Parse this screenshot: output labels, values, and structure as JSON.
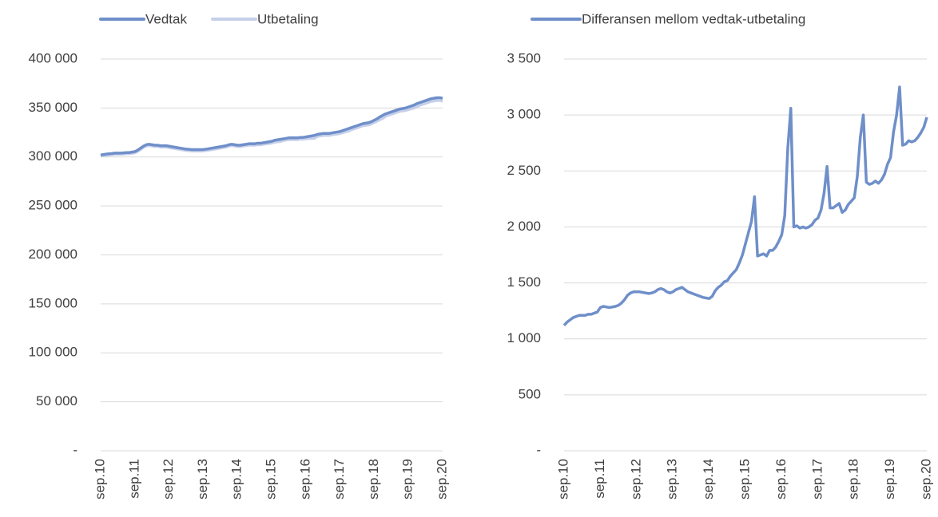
{
  "chart_data": [
    {
      "type": "line",
      "categories": [
        "sep.10",
        null,
        null,
        null,
        null,
        null,
        null,
        null,
        null,
        null,
        null,
        null,
        "sep.11",
        null,
        null,
        null,
        null,
        null,
        null,
        null,
        null,
        null,
        null,
        null,
        "sep.12",
        null,
        null,
        null,
        null,
        null,
        null,
        null,
        null,
        null,
        null,
        null,
        "sep.13",
        null,
        null,
        null,
        null,
        null,
        null,
        null,
        null,
        null,
        null,
        null,
        "sep.14",
        null,
        null,
        null,
        null,
        null,
        null,
        null,
        null,
        null,
        null,
        null,
        "sep.15",
        null,
        null,
        null,
        null,
        null,
        null,
        null,
        null,
        null,
        null,
        null,
        "sep.16",
        null,
        null,
        null,
        null,
        null,
        null,
        null,
        null,
        null,
        null,
        null,
        "sep.17",
        null,
        null,
        null,
        null,
        null,
        null,
        null,
        null,
        null,
        null,
        null,
        "sep.18",
        null,
        null,
        null,
        null,
        null,
        null,
        null,
        null,
        null,
        null,
        null,
        "sep.19",
        null,
        null,
        null,
        null,
        null,
        null,
        null,
        null,
        null,
        null,
        null,
        "sep.20"
      ],
      "series": [
        {
          "name": "Vedtak",
          "color": "#6f8fc9",
          "values": [
            302000,
            302500,
            303000,
            303300,
            303600,
            304000,
            304000,
            304000,
            304200,
            304500,
            304500,
            305000,
            305500,
            307000,
            309000,
            311000,
            312500,
            313000,
            312500,
            312000,
            312000,
            311500,
            311500,
            311500,
            311000,
            310500,
            310000,
            309500,
            309000,
            308500,
            308000,
            307800,
            307500,
            307500,
            307500,
            307500,
            307600,
            308000,
            308500,
            309000,
            309500,
            310000,
            310500,
            311000,
            311500,
            312500,
            313000,
            312500,
            312000,
            312000,
            312500,
            313000,
            313500,
            313500,
            313500,
            314000,
            314000,
            314500,
            315000,
            315500,
            316000,
            317000,
            317500,
            318000,
            318500,
            319000,
            319500,
            319500,
            319500,
            319500,
            320000,
            320000,
            320500,
            321000,
            321500,
            322000,
            323000,
            323500,
            324000,
            324000,
            324000,
            324500,
            325000,
            325500,
            326000,
            327000,
            328000,
            329000,
            330000,
            331000,
            332000,
            333000,
            334000,
            334500,
            335000,
            336000,
            337500,
            339000,
            341000,
            342500,
            344000,
            345000,
            346000,
            347000,
            348000,
            349000,
            349500,
            350000,
            351000,
            352000,
            353000,
            354500,
            355500,
            356500,
            357500,
            358500,
            359500,
            360000,
            360500,
            360500,
            360000
          ]
        },
        {
          "name": "Utbetaling",
          "color": "#c6d0ea",
          "values": [
            300880,
            301350,
            301830,
            302110,
            302400,
            302790,
            302790,
            302790,
            302980,
            303280,
            303270,
            303760,
            304220,
            305710,
            307715,
            309720,
            311215,
            311710,
            311200,
            310680,
            310650,
            310110,
            310090,
            310080,
            309580,
            309080,
            308585,
            308090,
            307595,
            307090,
            306580,
            306360,
            306050,
            306060,
            306080,
            306090,
            306180,
            306560,
            307050,
            307540,
            308060,
            308580,
            309090,
            309600,
            310110,
            311120,
            311630,
            311135,
            310640,
            310620,
            311070,
            311540,
            312020,
            311990,
            311980,
            312440,
            312410,
            312880,
            313320,
            313750,
            314150,
            315050,
            315450,
            315730,
            316760,
            317250,
            317740,
            317760,
            317710,
            317710,
            318180,
            318130,
            318570,
            318900,
            318800,
            318940,
            321000,
            321490,
            322010,
            322000,
            322010,
            322500,
            322980,
            323440,
            323920,
            324850,
            325700,
            326460,
            327830,
            328830,
            329810,
            330790,
            331870,
            332350,
            332800,
            333770,
            335240,
            336550,
            338200,
            339500,
            341600,
            342620,
            343610,
            344590,
            345610,
            346580,
            347030,
            347440,
            348380,
            349150,
            350000,
            351250,
            352770,
            353760,
            354730,
            355740,
            356730,
            357200,
            357660,
            357610,
            357020
          ]
        }
      ],
      "ylim": [
        0,
        400000
      ],
      "yticks": [
        {
          "value": 0,
          "label": "-"
        },
        {
          "value": 50000,
          "label": "50 000"
        },
        {
          "value": 100000,
          "label": "100 000"
        },
        {
          "value": 150000,
          "label": "150 000"
        },
        {
          "value": 200000,
          "label": "200 000"
        },
        {
          "value": 250000,
          "label": "250 000"
        },
        {
          "value": 300000,
          "label": "300 000"
        },
        {
          "value": 350000,
          "label": "350 000"
        },
        {
          "value": 400000,
          "label": "400 000"
        }
      ],
      "grid": true,
      "legend": "top"
    },
    {
      "type": "line",
      "categories": [
        "sep.10",
        null,
        null,
        null,
        null,
        null,
        null,
        null,
        null,
        null,
        null,
        null,
        "sep.11",
        null,
        null,
        null,
        null,
        null,
        null,
        null,
        null,
        null,
        null,
        null,
        "sep.12",
        null,
        null,
        null,
        null,
        null,
        null,
        null,
        null,
        null,
        null,
        null,
        "sep.13",
        null,
        null,
        null,
        null,
        null,
        null,
        null,
        null,
        null,
        null,
        null,
        "sep.14",
        null,
        null,
        null,
        null,
        null,
        null,
        null,
        null,
        null,
        null,
        null,
        "sep.15",
        null,
        null,
        null,
        null,
        null,
        null,
        null,
        null,
        null,
        null,
        null,
        "sep.16",
        null,
        null,
        null,
        null,
        null,
        null,
        null,
        null,
        null,
        null,
        null,
        "sep.17",
        null,
        null,
        null,
        null,
        null,
        null,
        null,
        null,
        null,
        null,
        null,
        "sep.18",
        null,
        null,
        null,
        null,
        null,
        null,
        null,
        null,
        null,
        null,
        null,
        "sep.19",
        null,
        null,
        null,
        null,
        null,
        null,
        null,
        null,
        null,
        null,
        null,
        "sep.20"
      ],
      "series": [
        {
          "name": "Differansen mellom vedtak-utbetaling",
          "color": "#6f8fc9",
          "values": [
            1120,
            1150,
            1170,
            1190,
            1200,
            1210,
            1210,
            1210,
            1220,
            1220,
            1230,
            1240,
            1280,
            1290,
            1285,
            1280,
            1285,
            1290,
            1300,
            1320,
            1350,
            1390,
            1410,
            1420,
            1420,
            1420,
            1415,
            1410,
            1405,
            1410,
            1420,
            1440,
            1450,
            1440,
            1420,
            1410,
            1420,
            1440,
            1450,
            1460,
            1440,
            1420,
            1410,
            1400,
            1390,
            1380,
            1370,
            1365,
            1360,
            1380,
            1430,
            1460,
            1480,
            1510,
            1520,
            1560,
            1590,
            1620,
            1680,
            1750,
            1850,
            1950,
            2050,
            2270,
            1740,
            1750,
            1760,
            1740,
            1790,
            1790,
            1820,
            1870,
            1930,
            2100,
            2700,
            3060,
            2000,
            2010,
            1990,
            2000,
            1990,
            2000,
            2020,
            2060,
            2080,
            2150,
            2300,
            2540,
            2170,
            2170,
            2190,
            2210,
            2130,
            2150,
            2200,
            2230,
            2260,
            2450,
            2800,
            3000,
            2400,
            2380,
            2390,
            2410,
            2390,
            2420,
            2470,
            2560,
            2620,
            2850,
            3000,
            3250,
            2730,
            2740,
            2770,
            2760,
            2770,
            2800,
            2840,
            2890,
            2980
          ]
        }
      ],
      "ylim": [
        0,
        3500
      ],
      "yticks": [
        {
          "value": 0,
          "label": "-"
        },
        500,
        {
          "value": 1000,
          "label": "1 000"
        },
        {
          "value": 1500,
          "label": "1 500"
        },
        {
          "value": 2000,
          "label": "2 000"
        },
        {
          "value": 2500,
          "label": "2 500"
        },
        {
          "value": 3000,
          "label": "3 000"
        },
        {
          "value": 3500,
          "label": "3 500"
        }
      ],
      "grid": true,
      "legend": "top"
    }
  ]
}
